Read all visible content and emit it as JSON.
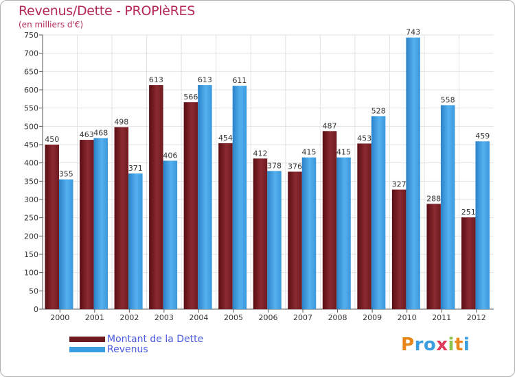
{
  "title": "Revenus/Dette - PROPlèRES",
  "subtitle": "(en milliers d'€)",
  "logo_text": "Proxiti",
  "chart_data": {
    "type": "bar",
    "categories": [
      "2000",
      "2001",
      "2002",
      "2003",
      "2004",
      "2005",
      "2006",
      "2007",
      "2008",
      "2009",
      "2010",
      "2011",
      "2012"
    ],
    "series": [
      {
        "name": "Montant de la Dette",
        "color": "#7a1a22",
        "values": [
          450,
          463,
          498,
          613,
          566,
          454,
          412,
          376,
          487,
          453,
          327,
          288,
          251
        ]
      },
      {
        "name": "Revenus",
        "color": "#3a9de0",
        "values": [
          355,
          468,
          371,
          406,
          613,
          611,
          378,
          415,
          415,
          528,
          743,
          558,
          459
        ]
      }
    ],
    "ylim": [
      0,
      750
    ],
    "yticks": [
      0,
      50,
      100,
      150,
      200,
      250,
      300,
      350,
      400,
      450,
      500,
      550,
      600,
      650,
      700,
      750
    ],
    "grid": true,
    "legend_position": "bottom-left"
  }
}
